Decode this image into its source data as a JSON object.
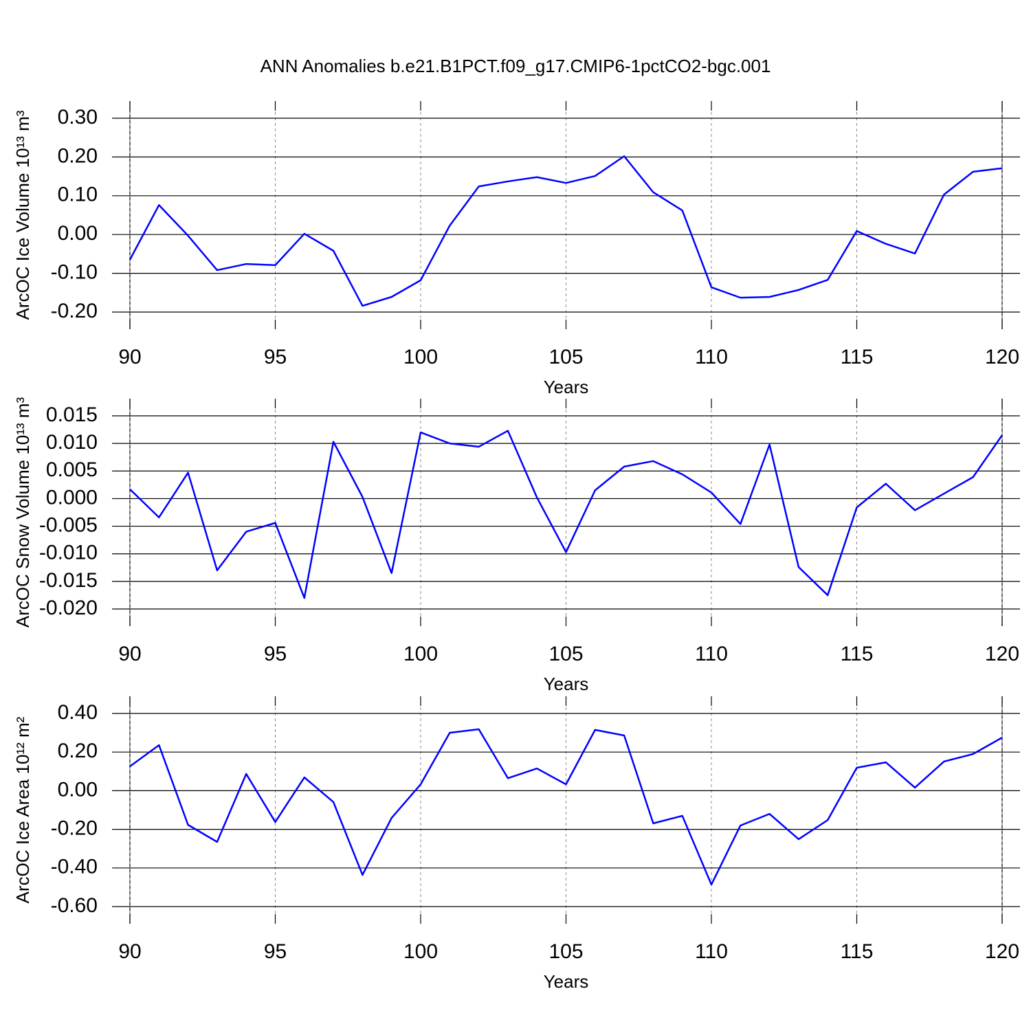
{
  "chart_data": [
    {
      "type": "line",
      "title": "ANN Anomalies b.e21.B1PCT.f09_g17.CMIP6-1pctCO2-bgc.001",
      "xlabel": "Years",
      "ylabel": "ArcOC Ice Volume 10¹³ m³",
      "x": [
        90,
        91,
        92,
        93,
        94,
        95,
        96,
        97,
        98,
        99,
        100,
        101,
        102,
        103,
        104,
        105,
        106,
        107,
        108,
        109,
        110,
        111,
        112,
        113,
        114,
        115,
        116,
        117,
        118,
        119,
        120
      ],
      "values": [
        -0.065,
        0.076,
        -0.003,
        -0.092,
        -0.076,
        -0.079,
        0.002,
        -0.042,
        -0.184,
        -0.161,
        -0.118,
        0.023,
        0.124,
        0.137,
        0.148,
        0.133,
        0.151,
        0.202,
        0.109,
        0.062,
        -0.136,
        -0.163,
        -0.161,
        -0.143,
        -0.117,
        0.009,
        -0.024,
        -0.049,
        0.103,
        0.162,
        0.171
      ],
      "color": "#0000ff",
      "xlim": [
        90,
        120
      ],
      "xticks": [
        90,
        95,
        100,
        105,
        110,
        115,
        120
      ],
      "ylim": [
        -0.2,
        0.3
      ],
      "yticks": [
        {
          "value": -0.2,
          "label": "-0.20"
        },
        {
          "value": -0.1,
          "label": "-0.10"
        },
        {
          "value": 0,
          "label": "0.00"
        },
        {
          "value": 0.1,
          "label": "0.10"
        },
        {
          "value": 0.2,
          "label": "0.20"
        },
        {
          "value": 0.3,
          "label": "0.30"
        }
      ],
      "grid": "x"
    },
    {
      "type": "line",
      "xlabel": "Years",
      "ylabel": "ArcOC Snow Volume 10¹³ m³",
      "x": [
        90,
        91,
        92,
        93,
        94,
        95,
        96,
        97,
        98,
        99,
        100,
        101,
        102,
        103,
        104,
        105,
        106,
        107,
        108,
        109,
        110,
        111,
        112,
        113,
        114,
        115,
        116,
        117,
        118,
        119,
        120
      ],
      "values": [
        0.0017,
        -0.0034,
        0.0047,
        -0.013,
        -0.006,
        -0.0044,
        -0.018,
        0.0103,
        0.0003,
        -0.0135,
        0.012,
        0.01,
        0.0094,
        0.0123,
        0.0002,
        -0.0097,
        0.0015,
        0.0058,
        0.0068,
        0.0044,
        0.0011,
        -0.0046,
        0.0098,
        -0.0124,
        -0.0175,
        -0.0016,
        0.0027,
        -0.0021,
        0.0009,
        0.0039,
        0.0115
      ],
      "color": "#0000ff",
      "xlim": [
        90,
        120
      ],
      "xticks": [
        90,
        95,
        100,
        105,
        110,
        115,
        120
      ],
      "ylim": [
        -0.02,
        0.015
      ],
      "yticks": [
        {
          "value": -0.02,
          "label": "-0.020"
        },
        {
          "value": -0.015,
          "label": "-0.015"
        },
        {
          "value": -0.01,
          "label": "-0.010"
        },
        {
          "value": -0.005,
          "label": "-0.005"
        },
        {
          "value": 0,
          "label": "0.000"
        },
        {
          "value": 0.005,
          "label": "0.005"
        },
        {
          "value": 0.01,
          "label": "0.010"
        },
        {
          "value": 0.015,
          "label": "0.015"
        }
      ],
      "grid": "x"
    },
    {
      "type": "line",
      "xlabel": "Years",
      "ylabel": "ArcOC Ice Area 10¹² m²",
      "x": [
        90,
        91,
        92,
        93,
        94,
        95,
        96,
        97,
        98,
        99,
        100,
        101,
        102,
        103,
        104,
        105,
        106,
        107,
        108,
        109,
        110,
        111,
        112,
        113,
        114,
        115,
        116,
        117,
        118,
        119,
        120
      ],
      "values": [
        0.126,
        0.236,
        -0.177,
        -0.265,
        0.087,
        -0.162,
        0.069,
        -0.059,
        -0.436,
        -0.141,
        0.033,
        0.3,
        0.318,
        0.065,
        0.115,
        0.033,
        0.315,
        0.286,
        -0.169,
        -0.13,
        -0.486,
        -0.18,
        -0.12,
        -0.251,
        -0.152,
        0.119,
        0.147,
        0.016,
        0.151,
        0.19,
        0.275
      ],
      "color": "#0000ff",
      "xlim": [
        90,
        120
      ],
      "xticks": [
        90,
        95,
        100,
        105,
        110,
        115,
        120
      ],
      "ylim": [
        -0.6,
        0.4
      ],
      "yticks": [
        {
          "value": -0.6,
          "label": "-0.60"
        },
        {
          "value": -0.4,
          "label": "-0.40"
        },
        {
          "value": -0.2,
          "label": "-0.20"
        },
        {
          "value": 0,
          "label": "0.00"
        },
        {
          "value": 0.2,
          "label": "0.20"
        },
        {
          "value": 0.4,
          "label": "0.40"
        }
      ],
      "grid": "x"
    }
  ]
}
